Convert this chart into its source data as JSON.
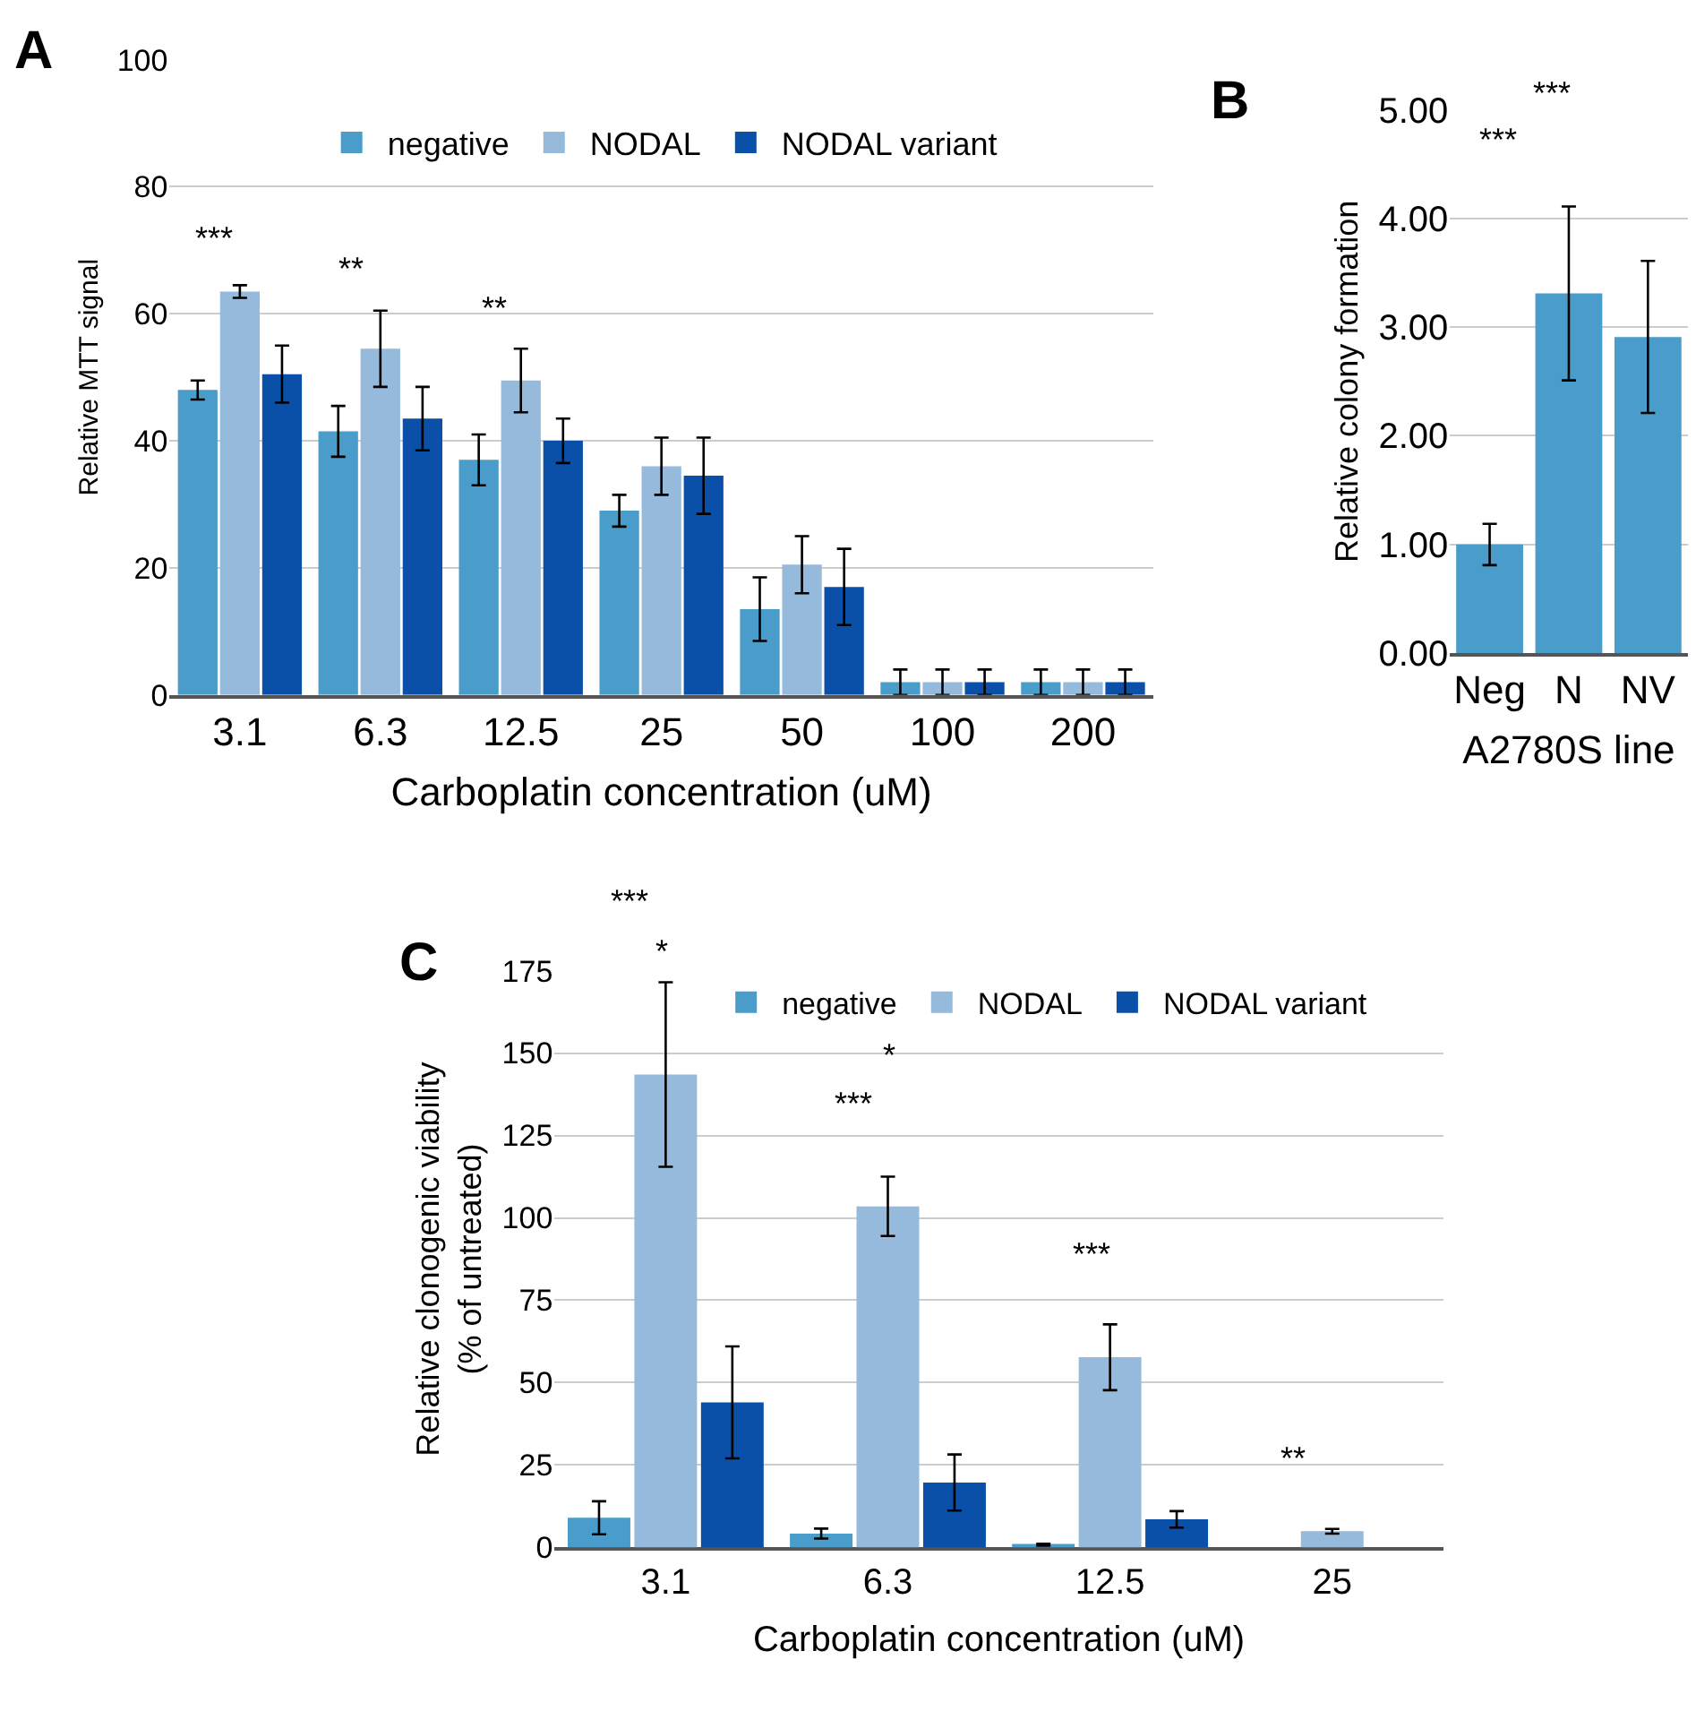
{
  "chart_data": [
    {
      "type": "bar",
      "xlabel": "Carboplatin concentration (uM)",
      "ylabel": "Relative MTT signal",
      "categories": [
        "3.1",
        "6.3",
        "12.5",
        "25",
        "50",
        "100",
        "200"
      ],
      "series": [
        {
          "name": "negative",
          "color": "#4a9ccb",
          "values": [
            48,
            41.5,
            37,
            29,
            13.5,
            2,
            2
          ],
          "errors": [
            1.5,
            4,
            4,
            2.5,
            5,
            2,
            2
          ]
        },
        {
          "name": "NODAL",
          "color": "#95badb",
          "values": [
            63.5,
            54.5,
            49.5,
            36,
            20.5,
            2,
            2
          ],
          "errors": [
            1,
            6,
            5,
            4.5,
            4.5,
            2,
            2
          ]
        },
        {
          "name": "NODAL variant",
          "color": "#0a4fa8",
          "values": [
            50.5,
            43.5,
            40,
            34.5,
            17,
            2,
            2
          ],
          "errors": [
            4.5,
            5,
            3.5,
            6,
            6,
            2,
            2
          ]
        }
      ],
      "ylim": [
        0,
        100
      ],
      "yticks": [
        0,
        20,
        40,
        60,
        80,
        100
      ],
      "grid": "y",
      "legend": "top",
      "annotations": [
        "A",
        "***",
        "**",
        "**"
      ]
    },
    {
      "type": "bar",
      "xlabel": "A2780S line",
      "ylabel": "Relative colony formation",
      "categories": [
        "Neg",
        "N",
        "NV"
      ],
      "series": [
        {
          "color": "#4a9ccb",
          "values": [
            1.0,
            3.31,
            2.91
          ],
          "errors": [
            0.19,
            0.8,
            0.7
          ]
        }
      ],
      "ylim": [
        0,
        5
      ],
      "yticks": [
        {
          "value": 0,
          "label": "0.00"
        },
        {
          "value": 1,
          "label": "1.00"
        },
        {
          "value": 2,
          "label": "2.00"
        },
        {
          "value": 3,
          "label": "3.00"
        },
        {
          "value": 4,
          "label": "4.00"
        },
        {
          "value": 5,
          "label": "5.00"
        }
      ],
      "grid": "y",
      "annotations": [
        "B",
        "***",
        "***"
      ]
    },
    {
      "type": "bar",
      "xlabel": "Carboplatin concentration (uM)",
      "ylabel": "Relative clonogenic viability\n(% of untreated)",
      "categories": [
        "3.1",
        "6.3",
        "12.5",
        "25"
      ],
      "series": [
        {
          "name": "negative",
          "color": "#4a9ccb",
          "values": [
            9,
            4.2,
            0.8,
            null
          ],
          "errors": [
            5,
            1.5,
            0.3,
            null
          ]
        },
        {
          "name": "NODAL",
          "color": "#95badb",
          "values": [
            143.5,
            103.5,
            57.7,
            4.9
          ],
          "errors": [
            28,
            9,
            10,
            0.7
          ]
        },
        {
          "name": "NODAL variant",
          "color": "#0a4fa8",
          "values": [
            44,
            19.7,
            8.5,
            null
          ],
          "errors": [
            17,
            8.5,
            2.5,
            null
          ]
        }
      ],
      "ylim": [
        0,
        175
      ],
      "yticks": [
        0,
        25,
        50,
        75,
        100,
        125,
        150,
        175
      ],
      "grid": "y",
      "legend": "top",
      "annotations": [
        "C",
        "***",
        "*",
        "*",
        "***",
        "***",
        "**"
      ]
    }
  ]
}
